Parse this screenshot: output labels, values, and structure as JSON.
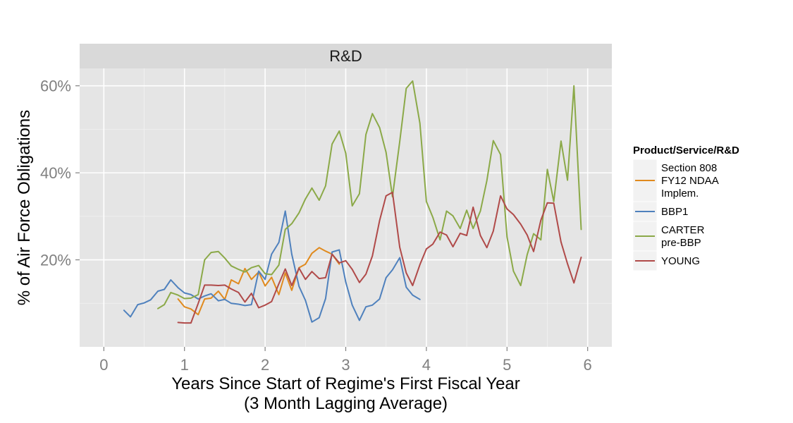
{
  "chart_data": {
    "type": "line",
    "facet_title": "R&D",
    "xlabel_line1": "Years Since Start of Regime's First Fiscal Year",
    "xlabel_line2": "(3 Month Lagging Average)",
    "ylabel": "% of Air Force Obligations",
    "xlim": [
      -0.3,
      6.3
    ],
    "ylim": [
      0.0,
      0.64
    ],
    "x_ticks": [
      0,
      1,
      2,
      3,
      4,
      5,
      6
    ],
    "x_tick_labels": [
      "0",
      "1",
      "2",
      "3",
      "4",
      "5",
      "6"
    ],
    "y_ticks": [
      0.2,
      0.4,
      0.6
    ],
    "y_tick_labels": [
      "20%",
      "40%",
      "60%"
    ],
    "grid": true,
    "legend_position": "right",
    "legend_title": "Product/Service/R&D",
    "series": [
      {
        "name": "Section 808 FY12 NDAA Implem.",
        "legend_lines": [
          "Section 808",
          "FY12 NDAA",
          "Implem."
        ],
        "color": "#E08A1E",
        "x": [
          0.92,
          1.0,
          1.08,
          1.17,
          1.25,
          1.33,
          1.42,
          1.5,
          1.58,
          1.67,
          1.75,
          1.83,
          1.92,
          2.0,
          2.08,
          2.17,
          2.25,
          2.33,
          2.42,
          2.5,
          2.58,
          2.67,
          2.75,
          2.83,
          2.92
        ],
        "y": [
          0.11,
          0.092,
          0.087,
          0.074,
          0.11,
          0.112,
          0.128,
          0.109,
          0.154,
          0.145,
          0.18,
          0.155,
          0.172,
          0.14,
          0.16,
          0.12,
          0.17,
          0.13,
          0.182,
          0.19,
          0.215,
          0.228,
          0.22,
          0.213,
          0.19
        ]
      },
      {
        "name": "BBP1",
        "legend_lines": [
          "BBP1"
        ],
        "color": "#4F81BD",
        "x": [
          0.25,
          0.33,
          0.42,
          0.5,
          0.58,
          0.67,
          0.75,
          0.83,
          0.92,
          1.0,
          1.08,
          1.17,
          1.25,
          1.33,
          1.42,
          1.5,
          1.58,
          1.67,
          1.75,
          1.83,
          1.92,
          2.0,
          2.08,
          2.17,
          2.25,
          2.33,
          2.42,
          2.5,
          2.58,
          2.67,
          2.75,
          2.83,
          2.92,
          3.0,
          3.08,
          3.17,
          3.25,
          3.33,
          3.42,
          3.5,
          3.58,
          3.67,
          3.75,
          3.83,
          3.92
        ],
        "y": [
          0.084,
          0.069,
          0.097,
          0.101,
          0.108,
          0.128,
          0.132,
          0.154,
          0.136,
          0.124,
          0.12,
          0.11,
          0.117,
          0.122,
          0.106,
          0.109,
          0.1,
          0.098,
          0.095,
          0.097,
          0.174,
          0.155,
          0.213,
          0.24,
          0.312,
          0.213,
          0.139,
          0.107,
          0.057,
          0.067,
          0.111,
          0.218,
          0.223,
          0.149,
          0.096,
          0.061,
          0.092,
          0.096,
          0.11,
          0.159,
          0.177,
          0.205,
          0.137,
          0.119,
          0.109
        ]
      },
      {
        "name": "CARTER pre-BBP",
        "legend_lines": [
          "CARTER",
          "pre-BBP"
        ],
        "color": "#8BA948",
        "x": [
          0.67,
          0.75,
          0.83,
          0.92,
          1.0,
          1.08,
          1.17,
          1.25,
          1.33,
          1.42,
          1.5,
          1.58,
          1.67,
          1.75,
          1.83,
          1.92,
          2.0,
          2.08,
          2.17,
          2.25,
          2.33,
          2.42,
          2.5,
          2.58,
          2.67,
          2.75,
          2.83,
          2.92,
          3.0,
          3.08,
          3.17,
          3.25,
          3.33,
          3.42,
          3.5,
          3.58,
          3.67,
          3.75,
          3.83,
          3.92,
          4.0,
          4.08,
          4.17,
          4.25,
          4.33,
          4.42,
          4.5,
          4.58,
          4.67,
          4.75,
          4.83,
          4.92,
          5.0,
          5.08,
          5.17,
          5.25,
          5.33,
          5.42,
          5.5,
          5.58,
          5.67,
          5.75,
          5.83,
          5.92
        ],
        "y": [
          0.088,
          0.097,
          0.125,
          0.119,
          0.111,
          0.112,
          0.12,
          0.2,
          0.217,
          0.219,
          0.204,
          0.186,
          0.178,
          0.172,
          0.182,
          0.187,
          0.168,
          0.166,
          0.188,
          0.27,
          0.283,
          0.308,
          0.34,
          0.365,
          0.337,
          0.37,
          0.466,
          0.496,
          0.445,
          0.324,
          0.352,
          0.488,
          0.536,
          0.504,
          0.447,
          0.345,
          0.472,
          0.594,
          0.611,
          0.514,
          0.334,
          0.298,
          0.246,
          0.312,
          0.301,
          0.272,
          0.314,
          0.272,
          0.312,
          0.382,
          0.474,
          0.442,
          0.253,
          0.174,
          0.141,
          0.212,
          0.26,
          0.246,
          0.408,
          0.334,
          0.473,
          0.383,
          0.6,
          0.27
        ]
      },
      {
        "name": "YOUNG",
        "legend_lines": [
          "YOUNG"
        ],
        "color": "#B04A49",
        "x": [
          0.92,
          1.0,
          1.08,
          1.17,
          1.25,
          1.33,
          1.42,
          1.5,
          1.58,
          1.67,
          1.75,
          1.83,
          1.92,
          2.0,
          2.08,
          2.17,
          2.25,
          2.33,
          2.42,
          2.5,
          2.58,
          2.67,
          2.75,
          2.83,
          2.92,
          3.0,
          3.08,
          3.17,
          3.25,
          3.33,
          3.42,
          3.5,
          3.58,
          3.67,
          3.75,
          3.83,
          3.92,
          4.0,
          4.08,
          4.17,
          4.25,
          4.33,
          4.42,
          4.5,
          4.58,
          4.67,
          4.75,
          4.83,
          4.92,
          5.0,
          5.08,
          5.17,
          5.25,
          5.33,
          5.42,
          5.5,
          5.58,
          5.67,
          5.75,
          5.83,
          5.92
        ],
        "y": [
          0.056,
          0.055,
          0.055,
          0.1,
          0.142,
          0.142,
          0.141,
          0.142,
          0.133,
          0.125,
          0.103,
          0.123,
          0.09,
          0.096,
          0.104,
          0.145,
          0.179,
          0.141,
          0.181,
          0.155,
          0.173,
          0.157,
          0.159,
          0.213,
          0.193,
          0.198,
          0.178,
          0.148,
          0.167,
          0.209,
          0.29,
          0.347,
          0.355,
          0.229,
          0.17,
          0.141,
          0.189,
          0.225,
          0.236,
          0.264,
          0.257,
          0.23,
          0.261,
          0.256,
          0.321,
          0.256,
          0.228,
          0.266,
          0.347,
          0.317,
          0.304,
          0.282,
          0.257,
          0.219,
          0.291,
          0.331,
          0.33,
          0.241,
          0.191,
          0.147,
          0.206
        ]
      }
    ]
  }
}
